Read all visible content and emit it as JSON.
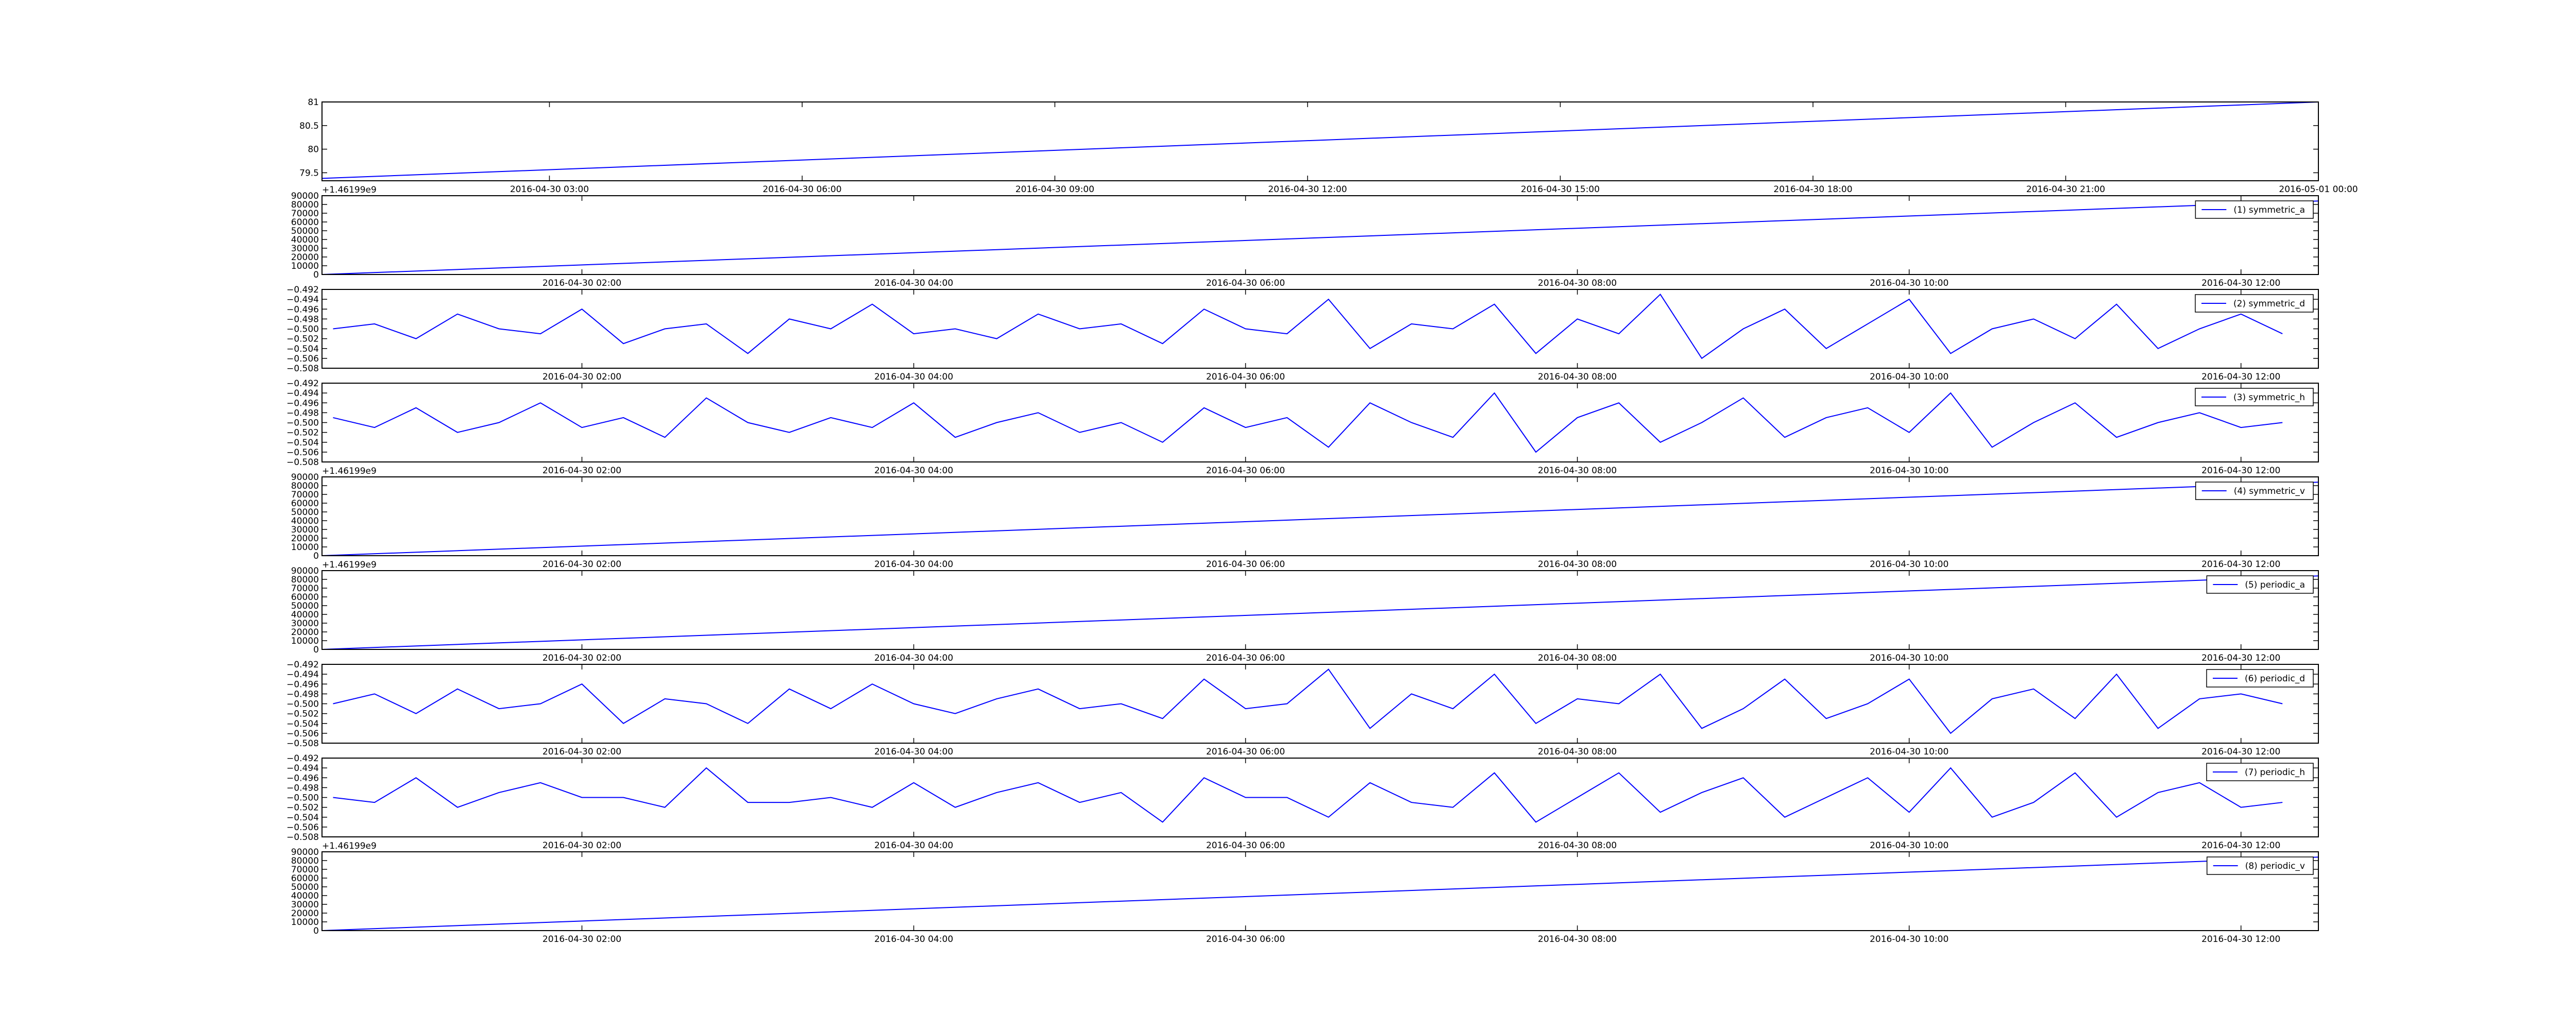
{
  "chart_data": [
    {
      "type": "line",
      "xlim": [
        "2016-04-30 00:18",
        "2016-05-01 00:00"
      ],
      "x": [
        "2016-04-30 00:18",
        "2016-05-01 00:00"
      ],
      "series": [
        {
          "color": "#0000ff",
          "values": [
            79.38,
            81.0
          ]
        }
      ],
      "ylim": [
        79.33,
        81.0
      ],
      "yticks": [
        79.5,
        80.0,
        80.5,
        81.0
      ],
      "xticks": [
        "2016-04-30 03:00",
        "2016-04-30 06:00",
        "2016-04-30 09:00",
        "2016-04-30 12:00",
        "2016-04-30 15:00",
        "2016-04-30 18:00",
        "2016-04-30 21:00",
        "2016-05-01 00:00"
      ]
    },
    {
      "type": "line",
      "xlim": [
        "2016-04-30 00:26",
        "2016-04-30 12:28"
      ],
      "x": [
        "2016-04-30 00:26",
        "2016-04-30 12:28"
      ],
      "series": [
        {
          "name": "(1) symmetric_a",
          "color": "#0000ff",
          "values": [
            0,
            84000
          ]
        }
      ],
      "ylim": [
        0,
        90000
      ],
      "yticks": [
        0,
        10000,
        20000,
        30000,
        40000,
        50000,
        60000,
        70000,
        80000,
        90000
      ],
      "offset_text": "+1.46199e9",
      "legend": "upper right",
      "xticks": [
        "2016-04-30 02:00",
        "2016-04-30 04:00",
        "2016-04-30 06:00",
        "2016-04-30 08:00",
        "2016-04-30 10:00",
        "2016-04-30 12:00"
      ]
    },
    {
      "type": "line",
      "xlim": [
        "2016-04-30 00:26",
        "2016-04-30 12:28"
      ],
      "x": [
        "2016-04-30 00:30",
        "2016-04-30 00:45",
        "2016-04-30 01:00",
        "2016-04-30 01:15",
        "2016-04-30 01:30",
        "2016-04-30 01:45",
        "2016-04-30 02:00",
        "2016-04-30 02:15",
        "2016-04-30 02:30",
        "2016-04-30 02:45",
        "2016-04-30 03:00",
        "2016-04-30 03:15",
        "2016-04-30 03:30",
        "2016-04-30 03:45",
        "2016-04-30 04:00",
        "2016-04-30 04:15",
        "2016-04-30 04:30",
        "2016-04-30 04:45",
        "2016-04-30 05:00",
        "2016-04-30 05:15",
        "2016-04-30 05:30",
        "2016-04-30 05:45",
        "2016-04-30 06:00",
        "2016-04-30 06:15",
        "2016-04-30 06:30",
        "2016-04-30 06:45",
        "2016-04-30 07:00",
        "2016-04-30 07:15",
        "2016-04-30 07:30",
        "2016-04-30 07:45",
        "2016-04-30 08:00",
        "2016-04-30 08:15",
        "2016-04-30 08:30",
        "2016-04-30 08:45",
        "2016-04-30 09:00",
        "2016-04-30 09:15",
        "2016-04-30 09:30",
        "2016-04-30 09:45",
        "2016-04-30 10:00",
        "2016-04-30 10:15",
        "2016-04-30 10:30",
        "2016-04-30 10:45",
        "2016-04-30 11:00",
        "2016-04-30 11:15",
        "2016-04-30 11:30",
        "2016-04-30 11:45",
        "2016-04-30 12:00",
        "2016-04-30 12:15"
      ],
      "series": [
        {
          "name": "(2) symmetric_d",
          "color": "#0000ff",
          "values": [
            -0.5,
            -0.499,
            -0.502,
            -0.497,
            -0.5,
            -0.501,
            -0.496,
            -0.503,
            -0.5,
            -0.499,
            -0.505,
            -0.498,
            -0.5,
            -0.495,
            -0.501,
            -0.5,
            -0.502,
            -0.497,
            -0.5,
            -0.499,
            -0.503,
            -0.496,
            -0.5,
            -0.501,
            -0.494,
            -0.504,
            -0.499,
            -0.5,
            -0.495,
            -0.505,
            -0.498,
            -0.501,
            -0.493,
            -0.506,
            -0.5,
            -0.496,
            -0.504,
            -0.499,
            -0.494,
            -0.505,
            -0.5,
            -0.498,
            -0.502,
            -0.495,
            -0.504,
            -0.5,
            -0.497,
            -0.501
          ]
        }
      ],
      "ylim": [
        -0.508,
        -0.492
      ],
      "yticks": [
        {
          "value": -0.508,
          "label": "−0.508"
        },
        {
          "value": -0.506,
          "label": "−0.506"
        },
        {
          "value": -0.504,
          "label": "−0.504"
        },
        {
          "value": -0.502,
          "label": "−0.502"
        },
        {
          "value": -0.5,
          "label": "−0.500"
        },
        {
          "value": -0.498,
          "label": "−0.498"
        },
        {
          "value": -0.496,
          "label": "−0.496"
        },
        {
          "value": -0.494,
          "label": "−0.494"
        },
        {
          "value": -0.492,
          "label": "−0.492"
        }
      ],
      "legend": "upper right",
      "xticks": [
        "2016-04-30 02:00",
        "2016-04-30 04:00",
        "2016-04-30 06:00",
        "2016-04-30 08:00",
        "2016-04-30 10:00",
        "2016-04-30 12:00"
      ]
    },
    {
      "type": "line",
      "xlim": [
        "2016-04-30 00:26",
        "2016-04-30 12:28"
      ],
      "x": [
        "2016-04-30 00:30",
        "2016-04-30 00:45",
        "2016-04-30 01:00",
        "2016-04-30 01:15",
        "2016-04-30 01:30",
        "2016-04-30 01:45",
        "2016-04-30 02:00",
        "2016-04-30 02:15",
        "2016-04-30 02:30",
        "2016-04-30 02:45",
        "2016-04-30 03:00",
        "2016-04-30 03:15",
        "2016-04-30 03:30",
        "2016-04-30 03:45",
        "2016-04-30 04:00",
        "2016-04-30 04:15",
        "2016-04-30 04:30",
        "2016-04-30 04:45",
        "2016-04-30 05:00",
        "2016-04-30 05:15",
        "2016-04-30 05:30",
        "2016-04-30 05:45",
        "2016-04-30 06:00",
        "2016-04-30 06:15",
        "2016-04-30 06:30",
        "2016-04-30 06:45",
        "2016-04-30 07:00",
        "2016-04-30 07:15",
        "2016-04-30 07:30",
        "2016-04-30 07:45",
        "2016-04-30 08:00",
        "2016-04-30 08:15",
        "2016-04-30 08:30",
        "2016-04-30 08:45",
        "2016-04-30 09:00",
        "2016-04-30 09:15",
        "2016-04-30 09:30",
        "2016-04-30 09:45",
        "2016-04-30 10:00",
        "2016-04-30 10:15",
        "2016-04-30 10:30",
        "2016-04-30 10:45",
        "2016-04-30 11:00",
        "2016-04-30 11:15",
        "2016-04-30 11:30",
        "2016-04-30 11:45",
        "2016-04-30 12:00",
        "2016-04-30 12:15"
      ],
      "series": [
        {
          "name": "(3) symmetric_h",
          "color": "#0000ff",
          "values": [
            -0.499,
            -0.501,
            -0.497,
            -0.502,
            -0.5,
            -0.496,
            -0.501,
            -0.499,
            -0.503,
            -0.495,
            -0.5,
            -0.502,
            -0.499,
            -0.501,
            -0.496,
            -0.503,
            -0.5,
            -0.498,
            -0.502,
            -0.5,
            -0.504,
            -0.497,
            -0.501,
            -0.499,
            -0.505,
            -0.496,
            -0.5,
            -0.503,
            -0.494,
            -0.506,
            -0.499,
            -0.496,
            -0.504,
            -0.5,
            -0.495,
            -0.503,
            -0.499,
            -0.497,
            -0.502,
            -0.494,
            -0.505,
            -0.5,
            -0.496,
            -0.503,
            -0.5,
            -0.498,
            -0.501,
            -0.5
          ]
        }
      ],
      "ylim": [
        -0.508,
        -0.492
      ],
      "yticks": [
        {
          "value": -0.508,
          "label": "−0.508"
        },
        {
          "value": -0.506,
          "label": "−0.506"
        },
        {
          "value": -0.504,
          "label": "−0.504"
        },
        {
          "value": -0.502,
          "label": "−0.502"
        },
        {
          "value": -0.5,
          "label": "−0.500"
        },
        {
          "value": -0.498,
          "label": "−0.498"
        },
        {
          "value": -0.496,
          "label": "−0.496"
        },
        {
          "value": -0.494,
          "label": "−0.494"
        },
        {
          "value": -0.492,
          "label": "−0.492"
        }
      ],
      "legend": "upper right",
      "xticks": [
        "2016-04-30 02:00",
        "2016-04-30 04:00",
        "2016-04-30 06:00",
        "2016-04-30 08:00",
        "2016-04-30 10:00",
        "2016-04-30 12:00"
      ]
    },
    {
      "type": "line",
      "xlim": [
        "2016-04-30 00:26",
        "2016-04-30 12:28"
      ],
      "x": [
        "2016-04-30 00:26",
        "2016-04-30 12:28"
      ],
      "series": [
        {
          "name": "(4) symmetric_v",
          "color": "#0000ff",
          "values": [
            0,
            84000
          ]
        }
      ],
      "ylim": [
        0,
        90000
      ],
      "yticks": [
        0,
        10000,
        20000,
        30000,
        40000,
        50000,
        60000,
        70000,
        80000,
        90000
      ],
      "offset_text": "+1.46199e9",
      "legend": "upper right",
      "xticks": [
        "2016-04-30 02:00",
        "2016-04-30 04:00",
        "2016-04-30 06:00",
        "2016-04-30 08:00",
        "2016-04-30 10:00",
        "2016-04-30 12:00"
      ]
    },
    {
      "type": "line",
      "xlim": [
        "2016-04-30 00:26",
        "2016-04-30 12:28"
      ],
      "x": [
        "2016-04-30 00:26",
        "2016-04-30 12:28"
      ],
      "series": [
        {
          "name": "(5) periodic_a",
          "color": "#0000ff",
          "values": [
            0,
            84000
          ]
        }
      ],
      "ylim": [
        0,
        90000
      ],
      "yticks": [
        0,
        10000,
        20000,
        30000,
        40000,
        50000,
        60000,
        70000,
        80000,
        90000
      ],
      "offset_text": "+1.46199e9",
      "legend": "upper right",
      "xticks": [
        "2016-04-30 02:00",
        "2016-04-30 04:00",
        "2016-04-30 06:00",
        "2016-04-30 08:00",
        "2016-04-30 10:00",
        "2016-04-30 12:00"
      ]
    },
    {
      "type": "line",
      "xlim": [
        "2016-04-30 00:26",
        "2016-04-30 12:28"
      ],
      "x": [
        "2016-04-30 00:30",
        "2016-04-30 00:45",
        "2016-04-30 01:00",
        "2016-04-30 01:15",
        "2016-04-30 01:30",
        "2016-04-30 01:45",
        "2016-04-30 02:00",
        "2016-04-30 02:15",
        "2016-04-30 02:30",
        "2016-04-30 02:45",
        "2016-04-30 03:00",
        "2016-04-30 03:15",
        "2016-04-30 03:30",
        "2016-04-30 03:45",
        "2016-04-30 04:00",
        "2016-04-30 04:15",
        "2016-04-30 04:30",
        "2016-04-30 04:45",
        "2016-04-30 05:00",
        "2016-04-30 05:15",
        "2016-04-30 05:30",
        "2016-04-30 05:45",
        "2016-04-30 06:00",
        "2016-04-30 06:15",
        "2016-04-30 06:30",
        "2016-04-30 06:45",
        "2016-04-30 07:00",
        "2016-04-30 07:15",
        "2016-04-30 07:30",
        "2016-04-30 07:45",
        "2016-04-30 08:00",
        "2016-04-30 08:15",
        "2016-04-30 08:30",
        "2016-04-30 08:45",
        "2016-04-30 09:00",
        "2016-04-30 09:15",
        "2016-04-30 09:30",
        "2016-04-30 09:45",
        "2016-04-30 10:00",
        "2016-04-30 10:15",
        "2016-04-30 10:30",
        "2016-04-30 10:45",
        "2016-04-30 11:00",
        "2016-04-30 11:15",
        "2016-04-30 11:30",
        "2016-04-30 11:45",
        "2016-04-30 12:00",
        "2016-04-30 12:15"
      ],
      "series": [
        {
          "name": "(6) periodic_d",
          "color": "#0000ff",
          "values": [
            -0.5,
            -0.498,
            -0.502,
            -0.497,
            -0.501,
            -0.5,
            -0.496,
            -0.504,
            -0.499,
            -0.5,
            -0.504,
            -0.497,
            -0.501,
            -0.496,
            -0.5,
            -0.502,
            -0.499,
            -0.497,
            -0.501,
            -0.5,
            -0.503,
            -0.495,
            -0.501,
            -0.5,
            -0.493,
            -0.505,
            -0.498,
            -0.501,
            -0.494,
            -0.504,
            -0.499,
            -0.5,
            -0.494,
            -0.505,
            -0.501,
            -0.495,
            -0.503,
            -0.5,
            -0.495,
            -0.506,
            -0.499,
            -0.497,
            -0.503,
            -0.494,
            -0.505,
            -0.499,
            -0.498,
            -0.5
          ]
        }
      ],
      "ylim": [
        -0.508,
        -0.492
      ],
      "yticks": [
        {
          "value": -0.508,
          "label": "−0.508"
        },
        {
          "value": -0.506,
          "label": "−0.506"
        },
        {
          "value": -0.504,
          "label": "−0.504"
        },
        {
          "value": -0.502,
          "label": "−0.502"
        },
        {
          "value": -0.5,
          "label": "−0.500"
        },
        {
          "value": -0.498,
          "label": "−0.498"
        },
        {
          "value": -0.496,
          "label": "−0.496"
        },
        {
          "value": -0.494,
          "label": "−0.494"
        },
        {
          "value": -0.492,
          "label": "−0.492"
        }
      ],
      "legend": "upper right",
      "xticks": [
        "2016-04-30 02:00",
        "2016-04-30 04:00",
        "2016-04-30 06:00",
        "2016-04-30 08:00",
        "2016-04-30 10:00",
        "2016-04-30 12:00"
      ]
    },
    {
      "type": "line",
      "xlim": [
        "2016-04-30 00:26",
        "2016-04-30 12:28"
      ],
      "x": [
        "2016-04-30 00:30",
        "2016-04-30 00:45",
        "2016-04-30 01:00",
        "2016-04-30 01:15",
        "2016-04-30 01:30",
        "2016-04-30 01:45",
        "2016-04-30 02:00",
        "2016-04-30 02:15",
        "2016-04-30 02:30",
        "2016-04-30 02:45",
        "2016-04-30 03:00",
        "2016-04-30 03:15",
        "2016-04-30 03:30",
        "2016-04-30 03:45",
        "2016-04-30 04:00",
        "2016-04-30 04:15",
        "2016-04-30 04:30",
        "2016-04-30 04:45",
        "2016-04-30 05:00",
        "2016-04-30 05:15",
        "2016-04-30 05:30",
        "2016-04-30 05:45",
        "2016-04-30 06:00",
        "2016-04-30 06:15",
        "2016-04-30 06:30",
        "2016-04-30 06:45",
        "2016-04-30 07:00",
        "2016-04-30 07:15",
        "2016-04-30 07:30",
        "2016-04-30 07:45",
        "2016-04-30 08:00",
        "2016-04-30 08:15",
        "2016-04-30 08:30",
        "2016-04-30 08:45",
        "2016-04-30 09:00",
        "2016-04-30 09:15",
        "2016-04-30 09:30",
        "2016-04-30 09:45",
        "2016-04-30 10:00",
        "2016-04-30 10:15",
        "2016-04-30 10:30",
        "2016-04-30 10:45",
        "2016-04-30 11:00",
        "2016-04-30 11:15",
        "2016-04-30 11:30",
        "2016-04-30 11:45",
        "2016-04-30 12:00",
        "2016-04-30 12:15"
      ],
      "series": [
        {
          "name": "(7) periodic_h",
          "color": "#0000ff",
          "values": [
            -0.5,
            -0.501,
            -0.496,
            -0.502,
            -0.499,
            -0.497,
            -0.5,
            -0.5,
            -0.502,
            -0.494,
            -0.501,
            -0.501,
            -0.5,
            -0.502,
            -0.497,
            -0.502,
            -0.499,
            -0.497,
            -0.501,
            -0.499,
            -0.505,
            -0.496,
            -0.5,
            -0.5,
            -0.504,
            -0.497,
            -0.501,
            -0.502,
            -0.495,
            -0.505,
            -0.5,
            -0.495,
            -0.503,
            -0.499,
            -0.496,
            -0.504,
            -0.5,
            -0.496,
            -0.503,
            -0.494,
            -0.504,
            -0.501,
            -0.495,
            -0.504,
            -0.499,
            -0.497,
            -0.502,
            -0.501
          ]
        }
      ],
      "ylim": [
        -0.508,
        -0.492
      ],
      "yticks": [
        {
          "value": -0.508,
          "label": "−0.508"
        },
        {
          "value": -0.506,
          "label": "−0.506"
        },
        {
          "value": -0.504,
          "label": "−0.504"
        },
        {
          "value": -0.502,
          "label": "−0.502"
        },
        {
          "value": -0.5,
          "label": "−0.500"
        },
        {
          "value": -0.498,
          "label": "−0.498"
        },
        {
          "value": -0.496,
          "label": "−0.496"
        },
        {
          "value": -0.494,
          "label": "−0.494"
        },
        {
          "value": -0.492,
          "label": "−0.492"
        }
      ],
      "legend": "upper right",
      "xticks": [
        "2016-04-30 02:00",
        "2016-04-30 04:00",
        "2016-04-30 06:00",
        "2016-04-30 08:00",
        "2016-04-30 10:00",
        "2016-04-30 12:00"
      ]
    },
    {
      "type": "line",
      "xlim": [
        "2016-04-30 00:26",
        "2016-04-30 12:28"
      ],
      "x": [
        "2016-04-30 00:26",
        "2016-04-30 12:28"
      ],
      "series": [
        {
          "name": "(8) periodic_v",
          "color": "#0000ff",
          "values": [
            0,
            84000
          ]
        }
      ],
      "ylim": [
        0,
        90000
      ],
      "yticks": [
        0,
        10000,
        20000,
        30000,
        40000,
        50000,
        60000,
        70000,
        80000,
        90000
      ],
      "offset_text": "+1.46199e9",
      "legend": "upper right",
      "xticks": [
        "2016-04-30 02:00",
        "2016-04-30 04:00",
        "2016-04-30 06:00",
        "2016-04-30 08:00",
        "2016-04-30 10:00",
        "2016-04-30 12:00"
      ]
    }
  ]
}
